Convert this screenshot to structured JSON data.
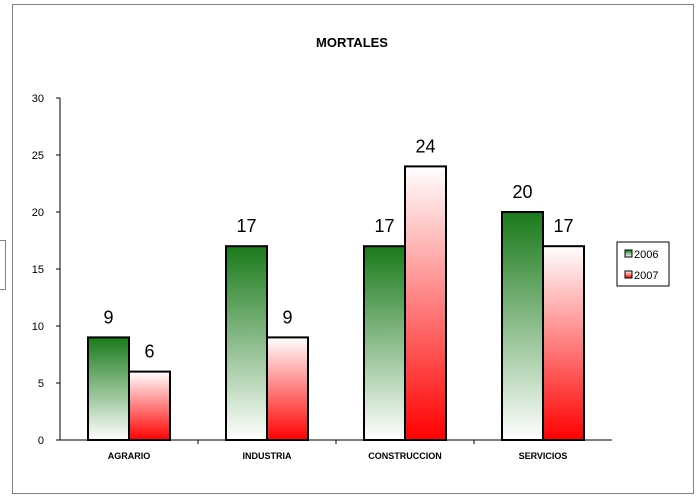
{
  "chart_data": {
    "type": "bar",
    "title": "MORTALES",
    "xlabel": "",
    "ylabel": "",
    "categories": [
      "AGRARIO",
      "INDUSTRIA",
      "CONSTRUCCION",
      "SERVICIOS"
    ],
    "series": [
      {
        "name": "2006",
        "values": [
          9,
          17,
          17,
          20
        ],
        "color_top": "#1a7a1a",
        "color_bottom": "#ffffff"
      },
      {
        "name": "2007",
        "values": [
          6,
          9,
          24,
          17
        ],
        "color_top": "#ffffff",
        "color_bottom": "#ff0000"
      }
    ],
    "ylim": [
      0,
      30
    ],
    "yticks": [
      0,
      5,
      10,
      15,
      20,
      25,
      30
    ],
    "ytick_labels": [
      "0",
      "5",
      "10",
      "15",
      "20",
      "25",
      "30"
    ],
    "data_labels": [
      [
        "9",
        "17",
        "17",
        "20"
      ],
      [
        "6",
        "9",
        "24",
        "17"
      ]
    ],
    "grid": false,
    "legend_position": "right"
  }
}
